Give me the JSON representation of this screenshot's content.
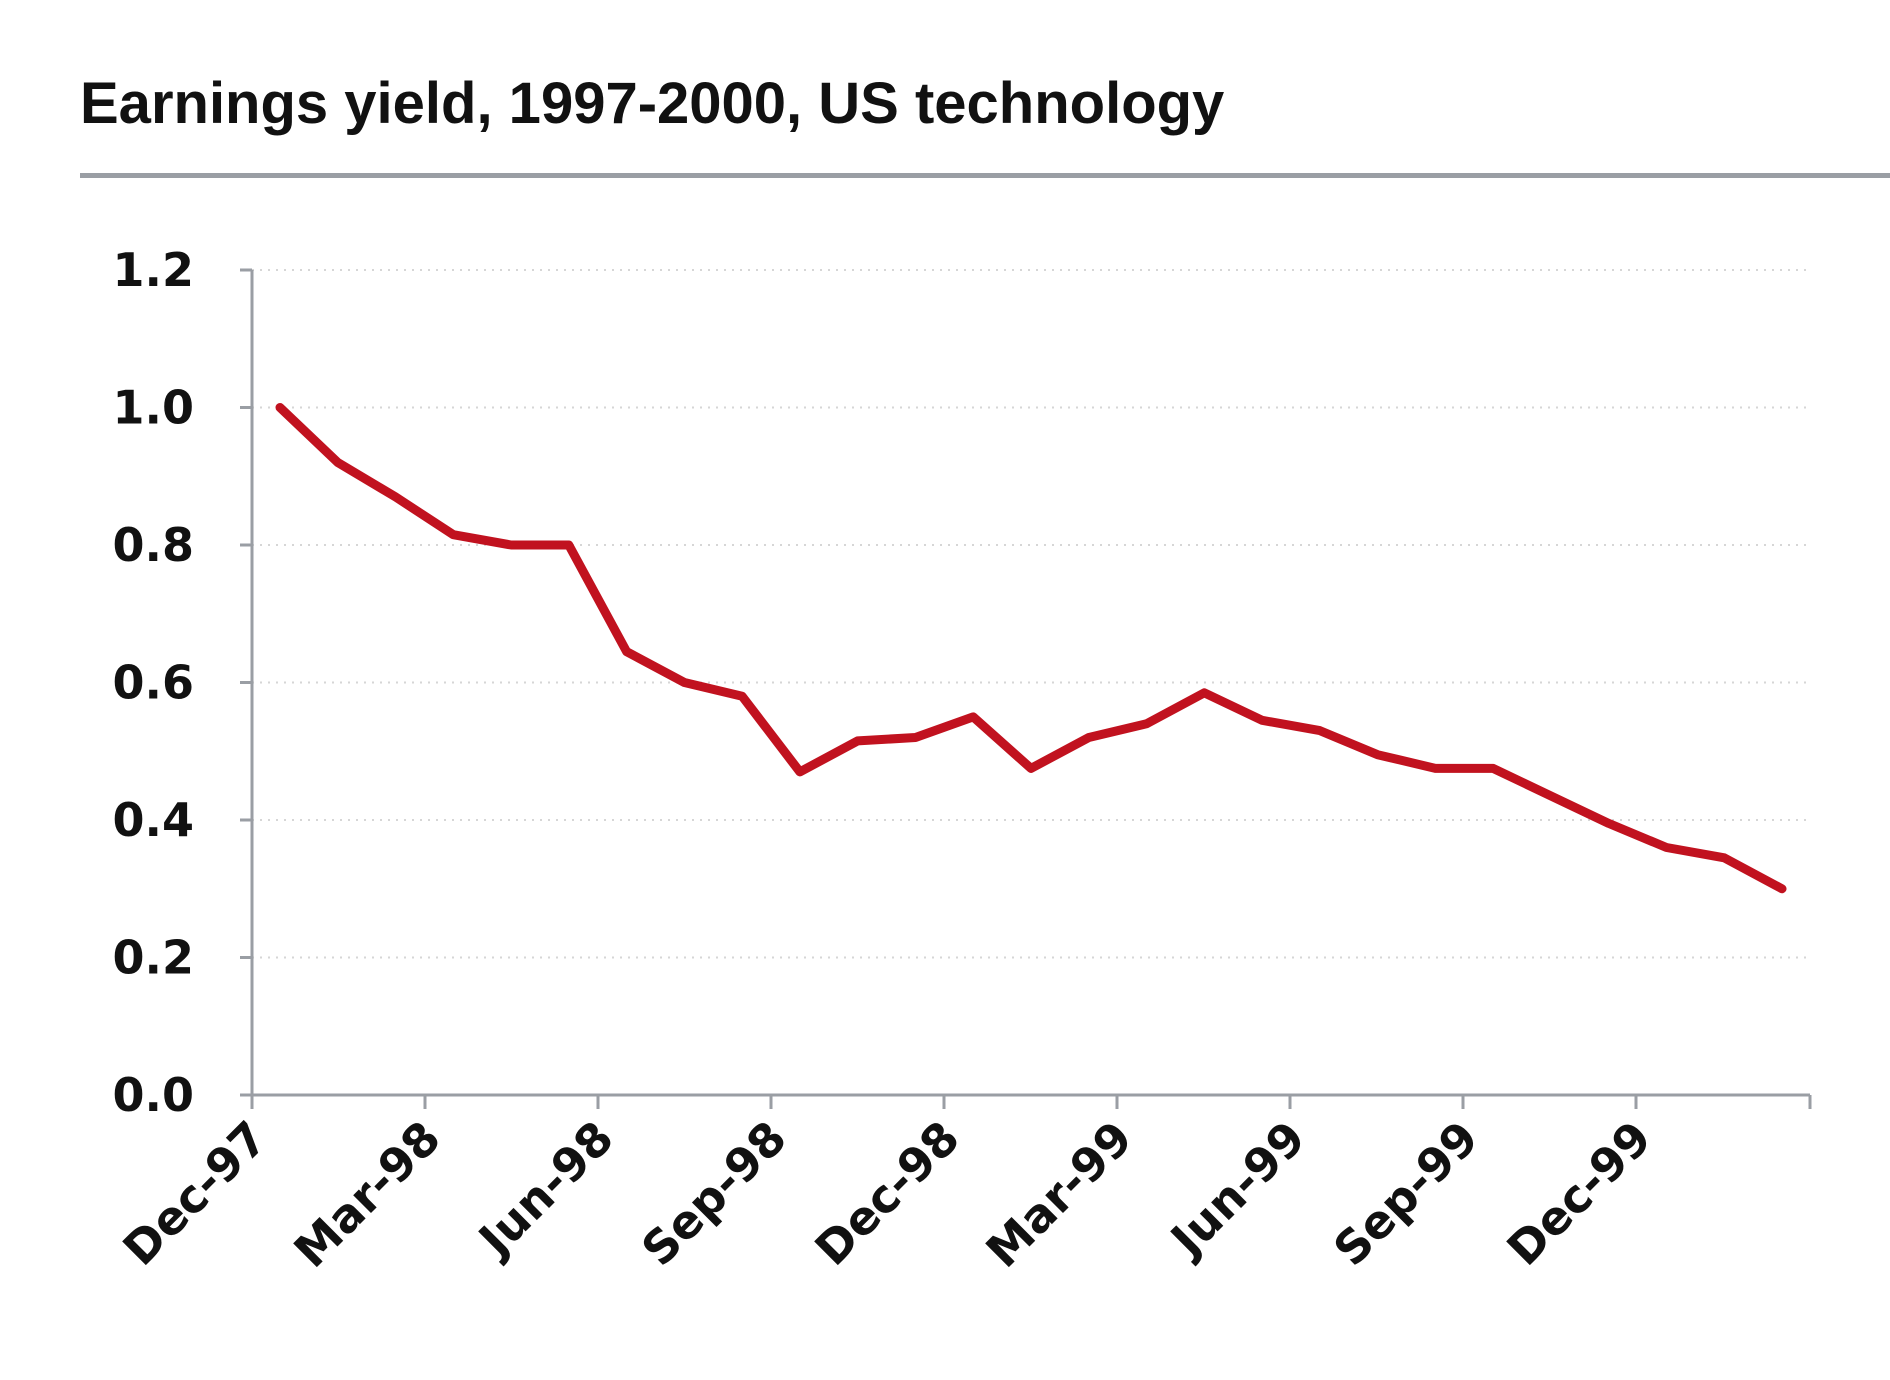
{
  "title": "Earnings yield, 1997-2000, US technology",
  "colors": {
    "line": "#c1121f",
    "title_rule": "#9a9ea4",
    "axis": "#9a9ea4",
    "grid": "#d6d6d6",
    "text": "#111111"
  },
  "chart_data": {
    "type": "line",
    "title": "Earnings yield, 1997-2000, US technology",
    "xlabel": "",
    "ylabel": "",
    "categories": [
      "Dec-97",
      "Mar-98",
      "Jun-98",
      "Sep-98",
      "Dec-98",
      "Mar-99",
      "Jun-99",
      "Sep-99",
      "Dec-99"
    ],
    "x": [
      "Dec-97",
      "Jan-98",
      "Feb-98",
      "Mar-98",
      "Apr-98",
      "May-98",
      "Jun-98",
      "Jul-98",
      "Aug-98",
      "Sep-98",
      "Oct-98",
      "Nov-98",
      "Dec-98",
      "Jan-99",
      "Feb-99",
      "Mar-99",
      "Apr-99",
      "May-99",
      "Jun-99",
      "Jul-99",
      "Aug-99",
      "Sep-99",
      "Oct-99",
      "Nov-99",
      "Dec-99",
      "Jan-00",
      "Feb-00"
    ],
    "series": [
      {
        "values": [
          1.0,
          0.92,
          0.87,
          0.815,
          0.8,
          0.8,
          0.645,
          0.6,
          0.58,
          0.47,
          0.515,
          0.52,
          0.55,
          0.475,
          0.52,
          0.54,
          0.585,
          0.545,
          0.53,
          0.495,
          0.475,
          0.475,
          0.435,
          0.395,
          0.36,
          0.345,
          0.3
        ]
      }
    ],
    "yticks": [
      "0.0",
      "0.2",
      "0.4",
      "0.6",
      "0.8",
      "1.0",
      "1.2"
    ],
    "ylim": [
      0,
      1.2
    ],
    "grid": true,
    "grid_style": "dotted horizontal"
  }
}
